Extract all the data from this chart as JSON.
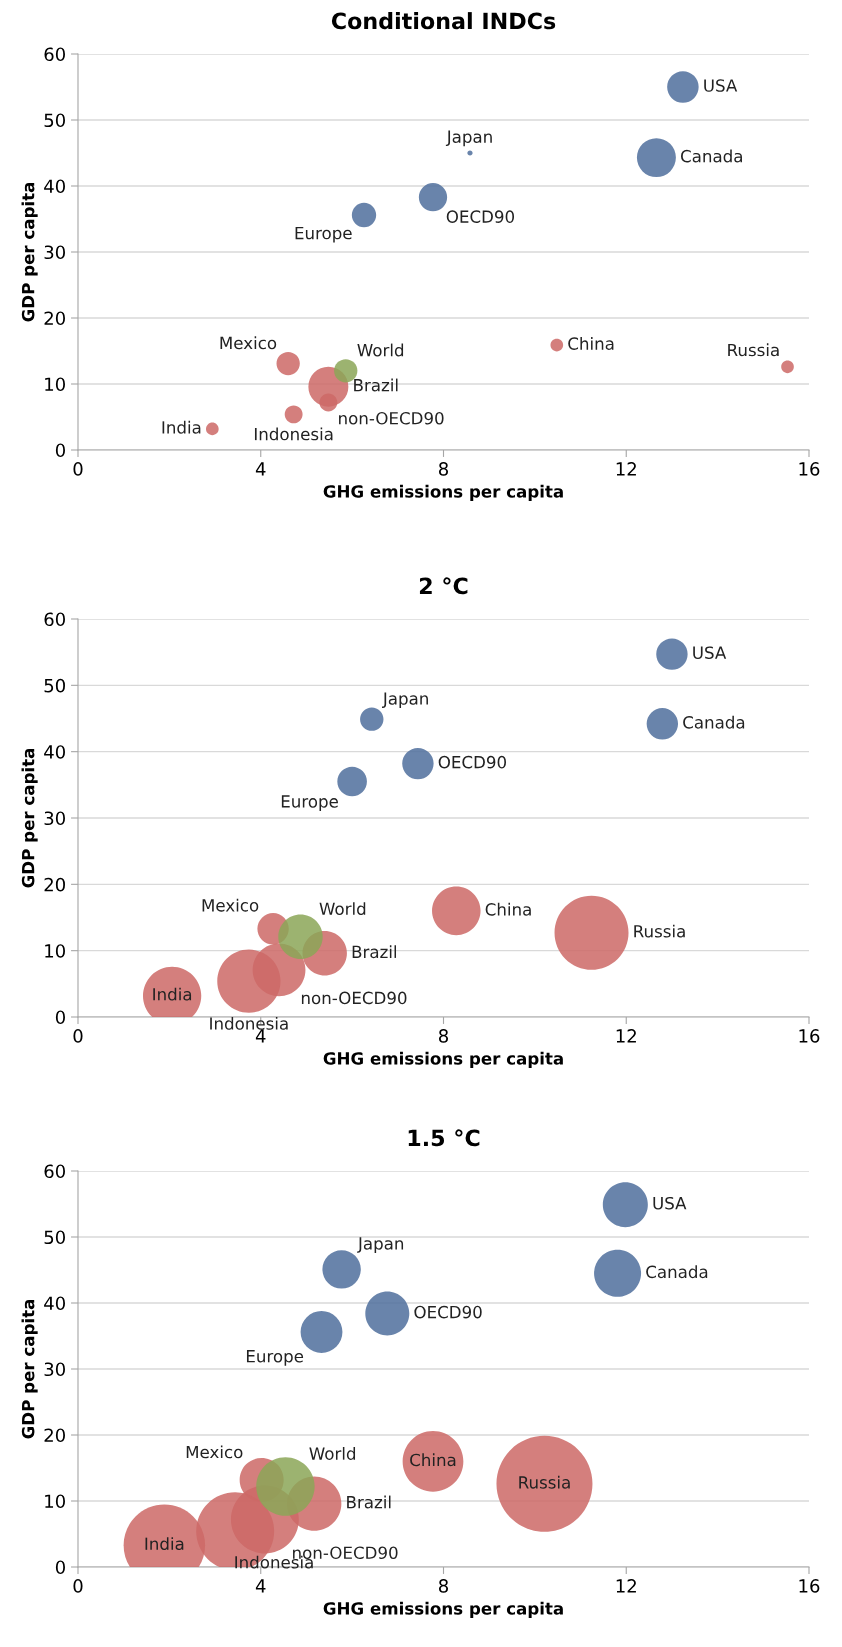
{
  "chart_data": [
    {
      "type": "bubble",
      "title": "Conditional INDCs",
      "xlabel": "GHG emissions per capita",
      "ylabel": "GDP per capita",
      "xlim": [
        0,
        16
      ],
      "xticks": [
        0,
        4,
        8,
        12,
        16
      ],
      "ylim": [
        0,
        60
      ],
      "yticks": [
        0,
        10,
        20,
        30,
        40,
        50,
        60
      ],
      "grid": "y",
      "series": [
        {
          "color": "#4f6f9c",
          "x": [
            13.24,
            12.66,
            8.58,
            7.77,
            6.26
          ],
          "values": [
            55.0,
            44.3,
            45.0,
            38.3,
            35.6
          ],
          "sizes": [
            0.62,
            0.95,
            0.017,
            0.5,
            0.37
          ]
        },
        {
          "color": "#cd6866",
          "x": [
            4.6,
            5.48,
            5.48,
            4.72,
            2.94,
            10.48,
            15.53
          ],
          "values": [
            13.1,
            9.6,
            7.2,
            5.4,
            3.2,
            15.9,
            12.6
          ],
          "sizes": [
            0.34,
            1,
            0.2,
            0.2,
            0.1,
            0.1,
            0.1
          ]
        },
        {
          "color": "#8ba657",
          "x": [
            5.86
          ],
          "values": [
            12.0
          ],
          "sizes": [
            0.34
          ]
        }
      ],
      "annotations": [
        {
          "text": "USA",
          "x": 13.24,
          "y": 55.0
        },
        {
          "text": "Canada",
          "x": 12.66,
          "y": 44.3
        },
        {
          "text": "Japan",
          "x": 8.58,
          "y": 45.0
        },
        {
          "text": "OECD90",
          "x": 7.77,
          "y": 38.3
        },
        {
          "text": "Europe",
          "x": 6.26,
          "y": 35.6
        },
        {
          "text": "Mexico",
          "x": 4.6,
          "y": 13.1
        },
        {
          "text": "World",
          "x": 5.86,
          "y": 12.0
        },
        {
          "text": "Brazil",
          "x": 5.48,
          "y": 9.6
        },
        {
          "text": "non-OECD90",
          "x": 5.48,
          "y": 7.2
        },
        {
          "text": "Indonesia",
          "x": 4.72,
          "y": 5.4
        },
        {
          "text": "India",
          "x": 2.94,
          "y": 3.2
        },
        {
          "text": "China",
          "x": 10.48,
          "y": 15.9
        },
        {
          "text": "Russia",
          "x": 15.53,
          "y": 12.6
        }
      ]
    },
    {
      "type": "bubble",
      "title": "2 °C",
      "xlabel": "GHG emissions per capita",
      "ylabel": "GDP per capita",
      "xlim": [
        0,
        16
      ],
      "xticks": [
        0,
        4,
        8,
        12,
        16
      ],
      "ylim": [
        0,
        60
      ],
      "yticks": [
        0,
        10,
        20,
        30,
        40,
        50,
        60
      ],
      "grid": "y",
      "series": [
        {
          "color": "#4f6f9c",
          "x": [
            13.0,
            12.79,
            6.43,
            7.44,
            6.0
          ],
          "values": [
            54.7,
            44.2,
            44.9,
            38.2,
            35.5
          ],
          "sizes": [
            0.18,
            0.18,
            0.1,
            0.18,
            0.16
          ]
        },
        {
          "color": "#cd6866",
          "x": [
            4.27,
            5.4,
            4.4,
            3.74,
            2.06,
            8.28,
            11.24
          ],
          "values": [
            13.3,
            9.6,
            7.1,
            5.4,
            3.2,
            16.0,
            12.7
          ],
          "sizes": [
            0.18,
            0.36,
            0.51,
            0.73,
            0.62,
            0.43,
            1
          ]
        },
        {
          "color": "#8ba657",
          "x": [
            4.87
          ],
          "values": [
            12.1
          ],
          "sizes": [
            0.36
          ]
        }
      ],
      "annotations": [
        {
          "text": "USA",
          "x": 13.0,
          "y": 54.7
        },
        {
          "text": "Canada",
          "x": 12.79,
          "y": 44.2
        },
        {
          "text": "Japan",
          "x": 6.43,
          "y": 44.9
        },
        {
          "text": "OECD90",
          "x": 7.44,
          "y": 38.2
        },
        {
          "text": "Europe",
          "x": 6.0,
          "y": 35.5
        },
        {
          "text": "Mexico",
          "x": 4.27,
          "y": 13.3
        },
        {
          "text": "World",
          "x": 4.87,
          "y": 12.1
        },
        {
          "text": "Brazil",
          "x": 5.4,
          "y": 9.6
        },
        {
          "text": "non-OECD90",
          "x": 4.4,
          "y": 7.1
        },
        {
          "text": "Indonesia",
          "x": 3.74,
          "y": 5.4
        },
        {
          "text": "India",
          "x": 2.06,
          "y": 3.2
        },
        {
          "text": "China",
          "x": 8.28,
          "y": 16.0
        },
        {
          "text": "Russia",
          "x": 11.24,
          "y": 12.7
        }
      ]
    },
    {
      "type": "bubble",
      "title": "1.5 °C",
      "xlabel": "GHG emissions per capita",
      "ylabel": "GDP per capita",
      "xlim": [
        0,
        16
      ],
      "xticks": [
        0,
        4,
        8,
        12,
        16
      ],
      "ylim": [
        0,
        60
      ],
      "yticks": [
        0,
        10,
        20,
        30,
        40,
        50,
        60
      ],
      "grid": "y",
      "series": [
        {
          "color": "#4f6f9c",
          "x": [
            11.98,
            11.81,
            5.77,
            6.77,
            5.33
          ],
          "values": [
            54.9,
            44.5,
            45.1,
            38.4,
            35.6
          ],
          "sizes": [
            0.22,
            0.24,
            0.16,
            0.21,
            0.19
          ]
        },
        {
          "color": "#cd6866",
          "x": [
            4.02,
            5.17,
            4.09,
            3.44,
            1.89,
            7.77,
            10.21
          ],
          "values": [
            13.2,
            9.6,
            7.2,
            5.4,
            3.3,
            16.0,
            12.6
          ],
          "sizes": [
            0.21,
            0.32,
            0.5,
            0.66,
            0.72,
            0.4,
            1
          ]
        },
        {
          "color": "#8ba657",
          "x": [
            4.54
          ],
          "values": [
            12.2
          ],
          "sizes": [
            0.37
          ]
        }
      ],
      "annotations": [
        {
          "text": "USA",
          "x": 11.98,
          "y": 54.9
        },
        {
          "text": "Canada",
          "x": 11.81,
          "y": 44.5
        },
        {
          "text": "Japan",
          "x": 5.77,
          "y": 45.1
        },
        {
          "text": "OECD90",
          "x": 6.77,
          "y": 38.4
        },
        {
          "text": "Europe",
          "x": 5.33,
          "y": 35.6
        },
        {
          "text": "Mexico",
          "x": 4.02,
          "y": 13.2
        },
        {
          "text": "World",
          "x": 4.54,
          "y": 12.2
        },
        {
          "text": "Brazil",
          "x": 5.17,
          "y": 9.6
        },
        {
          "text": "non-OECD90",
          "x": 4.09,
          "y": 7.2
        },
        {
          "text": "Indonesia",
          "x": 3.44,
          "y": 5.4
        },
        {
          "text": "India",
          "x": 1.89,
          "y": 3.3
        },
        {
          "text": "China",
          "x": 7.77,
          "y": 16.0
        },
        {
          "text": "Russia",
          "x": 10.21,
          "y": 12.6
        }
      ]
    }
  ]
}
